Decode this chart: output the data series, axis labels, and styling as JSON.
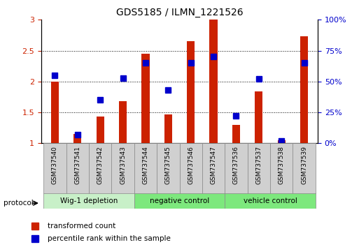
{
  "title": "GDS5185 / ILMN_1221526",
  "samples": [
    "GSM737540",
    "GSM737541",
    "GSM737542",
    "GSM737543",
    "GSM737544",
    "GSM737545",
    "GSM737546",
    "GSM737547",
    "GSM737536",
    "GSM737537",
    "GSM737538",
    "GSM737539"
  ],
  "red_values": [
    2.0,
    1.15,
    1.43,
    1.68,
    2.45,
    1.47,
    2.65,
    3.0,
    1.3,
    1.84,
    1.05,
    2.73
  ],
  "blue_values_pct": [
    55,
    7,
    35,
    53,
    65,
    43,
    65,
    70,
    22,
    52,
    2,
    65
  ],
  "ylim_left": [
    1.0,
    3.0
  ],
  "ylim_right": [
    0,
    100
  ],
  "yticks_left": [
    1.0,
    1.5,
    2.0,
    2.5,
    3.0
  ],
  "ytick_labels_left": [
    "1",
    "1.5",
    "2",
    "2.5",
    "3"
  ],
  "yticks_right": [
    0,
    25,
    50,
    75,
    100
  ],
  "ytick_labels_right": [
    "0%",
    "25%",
    "50%",
    "75%",
    "100%"
  ],
  "group_info": [
    {
      "label": "Wig-1 depletion",
      "start": 0,
      "end": 3,
      "color": "#c8f0c8"
    },
    {
      "label": "negative control",
      "start": 4,
      "end": 7,
      "color": "#7de87d"
    },
    {
      "label": "vehicle control",
      "start": 8,
      "end": 11,
      "color": "#7de87d"
    }
  ],
  "protocol_label": "protocol",
  "legend_red": "transformed count",
  "legend_blue": "percentile rank within the sample",
  "red_color": "#cc2200",
  "blue_color": "#0000cc",
  "bar_width": 0.35,
  "blue_marker_size": 6,
  "title_fontsize": 10,
  "tick_fontsize": 8,
  "sample_label_fontsize": 6.5,
  "sample_box_color": "#d0d0d0",
  "sample_box_edge": "#888888"
}
